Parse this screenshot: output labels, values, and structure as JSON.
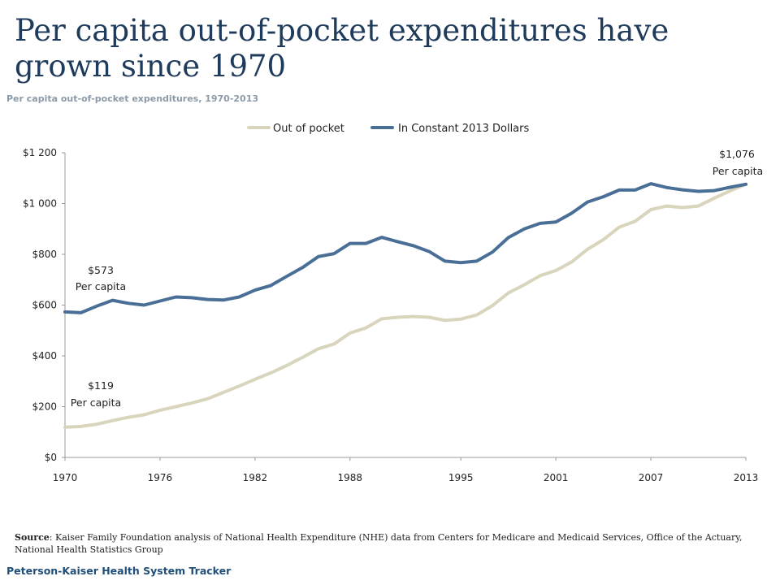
{
  "page": {
    "title": "Per capita out-of-pocket expenditures have grown since 1970",
    "subtitle": "Per capita out-of-pocket expenditures, 1970-2013",
    "source_label": "Source",
    "source_text": ": Kaiser Family Foundation analysis of National Health Expenditure (NHE) data from Centers for Medicare and Medicaid Services, Office of the Actuary, National Health Statistics Group",
    "footer": "Peterson-Kaiser Health System Tracker"
  },
  "chart_data": {
    "type": "line",
    "title": "",
    "xlabel": "",
    "ylabel": "",
    "x": [
      1970,
      1971,
      1972,
      1973,
      1974,
      1975,
      1976,
      1977,
      1978,
      1979,
      1980,
      1981,
      1982,
      1983,
      1984,
      1985,
      1986,
      1987,
      1988,
      1989,
      1990,
      1991,
      1992,
      1993,
      1994,
      1995,
      1996,
      1997,
      1998,
      1999,
      2000,
      2001,
      2002,
      2003,
      2004,
      2005,
      2006,
      2007,
      2008,
      2009,
      2010,
      2011,
      2012,
      2013
    ],
    "xlim": [
      1970,
      2013
    ],
    "x_ticks": [
      1970,
      1976,
      1982,
      1988,
      1995,
      2001,
      2007,
      2013
    ],
    "x_tick_labels": [
      "1970",
      "1976",
      "1982",
      "1988",
      "1995",
      "2001",
      "2007",
      "2013"
    ],
    "ylim": [
      0,
      1200
    ],
    "y_ticks": [
      0,
      200,
      400,
      600,
      800,
      1000,
      1200
    ],
    "y_tick_labels": [
      "$0",
      "$200",
      "$400",
      "$600",
      "$800",
      "$1 000",
      "$1 200"
    ],
    "grid": false,
    "legend_position": "top-center",
    "series": [
      {
        "name": "Out of pocket",
        "color": "#d9d4bc",
        "values": [
          119,
          122,
          131,
          145,
          158,
          168,
          186,
          200,
          214,
          231,
          256,
          281,
          308,
          333,
          362,
          394,
          428,
          447,
          490,
          510,
          546,
          552,
          555,
          552,
          540,
          545,
          561,
          598,
          648,
          680,
          716,
          736,
          770,
          820,
          858,
          907,
          930,
          976,
          990,
          984,
          990,
          1021,
          1050,
          1076
        ]
      },
      {
        "name": "In Constant 2013 Dollars",
        "color": "#4a6f96",
        "values": [
          573,
          570,
          596,
          619,
          607,
          600,
          616,
          632,
          629,
          622,
          620,
          632,
          659,
          677,
          713,
          748,
          791,
          803,
          843,
          843,
          867,
          850,
          834,
          811,
          773,
          767,
          773,
          809,
          866,
          900,
          922,
          927,
          962,
          1006,
          1027,
          1053,
          1053,
          1078,
          1063,
          1054,
          1048,
          1051,
          1064,
          1076
        ]
      }
    ],
    "annotations": [
      {
        "text": "$573",
        "text2": "Per capita"
      },
      {
        "text": "$119",
        "text2": "Per capita"
      },
      {
        "text": "$1,076",
        "text2": "Per capita"
      }
    ]
  }
}
